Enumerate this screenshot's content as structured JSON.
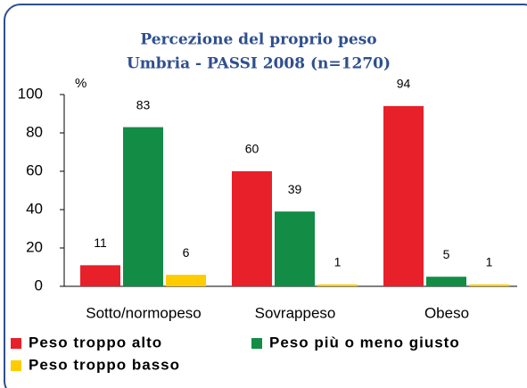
{
  "chart_data": {
    "type": "bar",
    "title": [
      "Percezione del proprio peso",
      "Umbria - PASSI 2008 (n=1270)"
    ],
    "y_label": "%",
    "categories": [
      "Sotto/normopeso",
      "Sovrappeso",
      "Obeso"
    ],
    "series": [
      {
        "name": "Peso troppo alto",
        "color": "#e8202a",
        "values": [
          11,
          60,
          94
        ]
      },
      {
        "name": "Peso più o meno giusto",
        "color": "#138c46",
        "values": [
          83,
          39,
          5
        ]
      },
      {
        "name": "Peso troppo basso",
        "color": "#ffcc00",
        "values": [
          6,
          1,
          1
        ]
      }
    ],
    "ylim": [
      0,
      100
    ],
    "yticks": [
      0,
      20,
      40,
      60,
      80,
      100
    ],
    "legend": "bottom"
  }
}
